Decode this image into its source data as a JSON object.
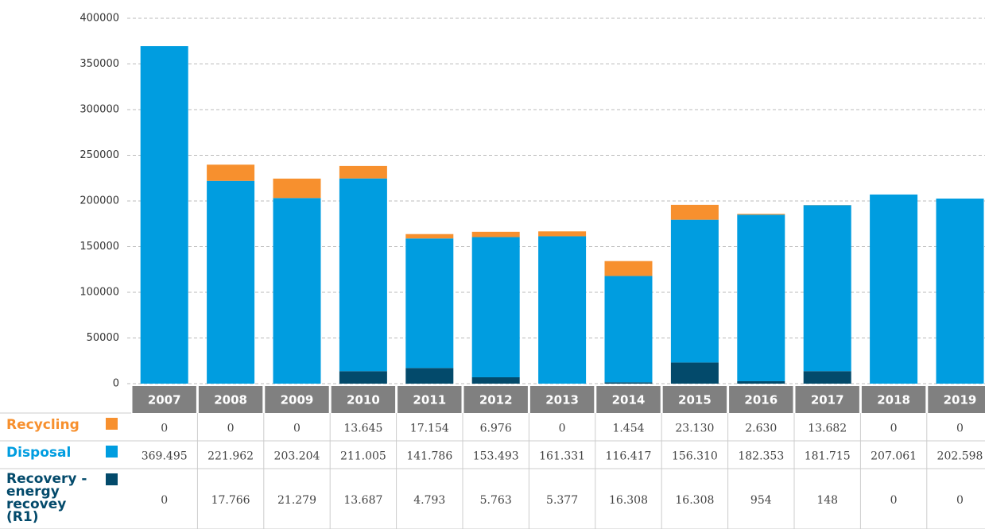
{
  "chart_data": {
    "type": "stacked-bar-table",
    "categories": [
      "2007",
      "2008",
      "2009",
      "2010",
      "2011",
      "2012",
      "2013",
      "2014",
      "2015",
      "2016",
      "2017",
      "2018",
      "2019"
    ],
    "series": [
      {
        "name": "Recycling",
        "color": "#f7902e",
        "bar_color": "#034a6b",
        "values": [
          0,
          0,
          0,
          13645,
          17154,
          6976,
          0,
          1454,
          23130,
          2630,
          13682,
          0,
          0
        ],
        "value_labels": [
          "0",
          "0",
          "0",
          "13.645",
          "17.154",
          "6.976",
          "0",
          "1.454",
          "23.130",
          "2.630",
          "13.682",
          "0",
          "0"
        ]
      },
      {
        "name": "Disposal",
        "color": "#009de0",
        "bar_color": "#009de0",
        "values": [
          369495,
          221962,
          203204,
          211005,
          141786,
          153493,
          161331,
          116417,
          156310,
          182353,
          181715,
          207061,
          202598
        ],
        "value_labels": [
          "369.495",
          "221.962",
          "203.204",
          "211.005",
          "141.786",
          "153.493",
          "161.331",
          "116.417",
          "156.310",
          "182.353",
          "181.715",
          "207.061",
          "202.598"
        ]
      },
      {
        "name": "Recovery - energy recovey (R1)",
        "color": "#034a6b",
        "bar_color": "#f7902e",
        "values": [
          0,
          17766,
          21279,
          13687,
          4793,
          5763,
          5377,
          16308,
          16308,
          954,
          148,
          0,
          0
        ],
        "value_labels": [
          "0",
          "17.766",
          "21.279",
          "13.687",
          "4.793",
          "5.763",
          "5.377",
          "16.308",
          "16.308",
          "954",
          "148",
          "0",
          "0"
        ]
      }
    ],
    "ylim": [
      0,
      400000
    ],
    "yticks": [
      0,
      50000,
      100000,
      150000,
      200000,
      250000,
      300000,
      350000,
      400000
    ],
    "grid": true
  }
}
